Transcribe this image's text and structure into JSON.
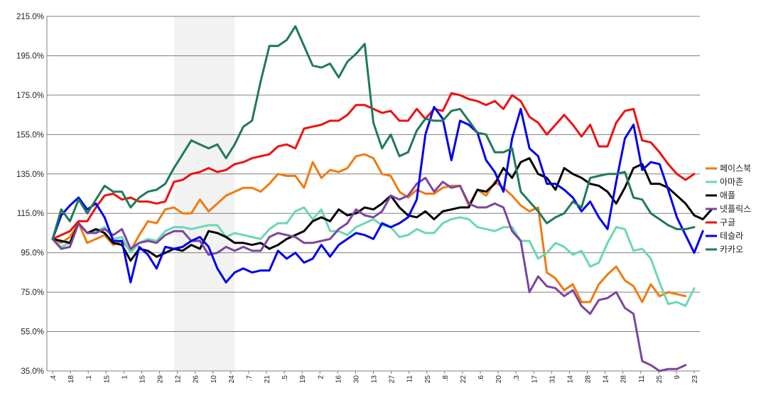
{
  "chart_data": {
    "type": "line",
    "title": "",
    "xlabel": "",
    "ylabel": "",
    "ylim": [
      35,
      215
    ],
    "y_tick_labels": [
      "35.0%",
      "55.0%",
      "75.0%",
      "95.0%",
      "115.0%",
      "135.0%",
      "155.0%",
      "175.0%",
      "195.0%",
      "215.0%"
    ],
    "x_tick_labels": [
      ".4",
      "18",
      ".1",
      "15",
      "1",
      "15",
      "29",
      "12",
      "26",
      "10",
      "24",
      ".7",
      "21",
      ".5",
      "19",
      "2",
      "16",
      "30",
      "13",
      "27",
      "11",
      "25",
      ".8",
      "22",
      ".6",
      "20",
      ".3",
      "17",
      "31",
      "14",
      "28",
      "14",
      "28",
      "11",
      "25",
      "9",
      "23"
    ],
    "grid": "horizontal",
    "legend_position": "right",
    "shaded_band": {
      "x_from": 14,
      "x_to": 21,
      "color": "#f2f2f2"
    },
    "series": [
      {
        "name": "페이스북",
        "color": "#f07a10",
        "values": [
          102,
          100,
          103,
          110,
          100,
          102,
          104,
          99,
          101,
          96,
          104,
          111,
          110,
          117,
          118,
          115,
          115,
          122,
          116,
          120,
          124,
          126,
          128,
          128,
          126,
          130,
          135,
          134,
          134,
          128,
          141,
          133,
          137,
          136,
          138,
          144,
          145,
          143,
          135,
          134,
          126,
          123,
          127,
          125,
          125,
          128,
          129,
          129,
          119,
          127,
          124,
          131,
          128,
          124,
          119,
          116,
          118,
          85,
          82,
          76,
          79,
          70,
          70,
          79,
          84,
          88,
          81,
          78,
          70,
          79,
          73,
          75,
          74,
          73
        ]
      },
      {
        "name": "아마존",
        "color": "#6ad8b4",
        "values": [
          102,
          98,
          100,
          110,
          105,
          106,
          108,
          102,
          103,
          95,
          100,
          102,
          101,
          106,
          108,
          108,
          107,
          108,
          109,
          109,
          103,
          105,
          104,
          103,
          102,
          107,
          110,
          110,
          116,
          118,
          112,
          117,
          106,
          106,
          104,
          108,
          110,
          112,
          109,
          108,
          103,
          104,
          107,
          105,
          105,
          110,
          112,
          113,
          112,
          108,
          107,
          106,
          108,
          108,
          101,
          101,
          92,
          95,
          100,
          98,
          94,
          96,
          88,
          90,
          100,
          108,
          107,
          96,
          97,
          92,
          80,
          69,
          70,
          68,
          77
        ]
      },
      {
        "name": "애플",
        "color": "#000000",
        "values": [
          102,
          101,
          100,
          110,
          105,
          107,
          105,
          100,
          99,
          91,
          97,
          96,
          93,
          95,
          97,
          96,
          99,
          97,
          106,
          105,
          103,
          100,
          100,
          99,
          100,
          97,
          99,
          102,
          104,
          106,
          111,
          113,
          111,
          117,
          114,
          115,
          118,
          117,
          120,
          124,
          118,
          114,
          113,
          116,
          112,
          116,
          117,
          118,
          118,
          127,
          126,
          130,
          138,
          133,
          141,
          143,
          135,
          133,
          127,
          138,
          135,
          133,
          130,
          129,
          126,
          120,
          128,
          138,
          140,
          130,
          130,
          128,
          124,
          120,
          114,
          112,
          117
        ]
      },
      {
        "name": "넷플릭스",
        "color": "#7a46a0",
        "values": [
          102,
          97,
          98,
          110,
          105,
          105,
          107,
          104,
          107,
          97,
          100,
          101,
          100,
          104,
          106,
          106,
          101,
          101,
          94,
          95,
          98,
          96,
          98,
          96,
          96,
          103,
          105,
          104,
          103,
          100,
          100,
          101,
          102,
          107,
          110,
          117,
          114,
          113,
          116,
          124,
          122,
          124,
          130,
          133,
          126,
          131,
          128,
          129,
          120,
          118,
          118,
          120,
          118,
          106,
          101,
          75,
          83,
          78,
          77,
          73,
          76,
          68,
          64,
          71,
          72,
          75,
          67,
          64,
          40,
          38,
          35,
          36,
          36,
          38
        ]
      },
      {
        "name": "구글",
        "color": "#ee1111",
        "values": [
          102,
          104,
          106,
          111,
          111,
          118,
          124,
          125,
          122,
          123,
          121,
          121,
          120,
          121,
          131,
          132,
          135,
          136,
          138,
          136,
          137,
          140,
          141,
          143,
          144,
          145,
          149,
          150,
          148,
          158,
          159,
          160,
          162,
          162,
          165,
          170,
          170,
          168,
          166,
          167,
          162,
          162,
          168,
          163,
          168,
          167,
          176,
          175,
          173,
          172,
          170,
          172,
          168,
          175,
          172,
          164,
          161,
          155,
          160,
          165,
          160,
          154,
          160,
          149,
          149,
          161,
          167,
          168,
          152,
          151,
          146,
          140,
          135,
          132,
          135
        ]
      },
      {
        "name": "테슬라",
        "color": "#0000ee",
        "values": [
          102,
          114,
          119,
          123,
          117,
          120,
          113,
          101,
          101,
          80,
          98,
          94,
          87,
          98,
          97,
          98,
          101,
          103,
          98,
          87,
          80,
          85,
          87,
          85,
          86,
          86,
          96,
          92,
          95,
          90,
          92,
          99,
          93,
          99,
          102,
          105,
          104,
          102,
          110,
          108,
          110,
          113,
          122,
          155,
          169,
          163,
          142,
          162,
          160,
          156,
          142,
          136,
          126,
          153,
          168,
          148,
          144,
          130,
          130,
          127,
          123,
          116,
          121,
          113,
          107,
          131,
          153,
          160,
          137,
          141,
          140,
          127,
          113,
          104,
          95,
          106
        ]
      },
      {
        "name": "카카오",
        "color": "#1f7a5a",
        "values": [
          102,
          117,
          111,
          122,
          115,
          122,
          129,
          126,
          126,
          118,
          123,
          126,
          127,
          130,
          138,
          145,
          152,
          150,
          148,
          150,
          143,
          150,
          159,
          162,
          182,
          200,
          200,
          203,
          210,
          200,
          190,
          189,
          191,
          184,
          192,
          196,
          201,
          161,
          148,
          155,
          144,
          146,
          157,
          163,
          162,
          162,
          167,
          168,
          162,
          156,
          155,
          146,
          146,
          148,
          126,
          121,
          116,
          110,
          113,
          115,
          121,
          118,
          133,
          134,
          135,
          135,
          136,
          123,
          122,
          115,
          112,
          109,
          107,
          107,
          108
        ]
      }
    ]
  }
}
